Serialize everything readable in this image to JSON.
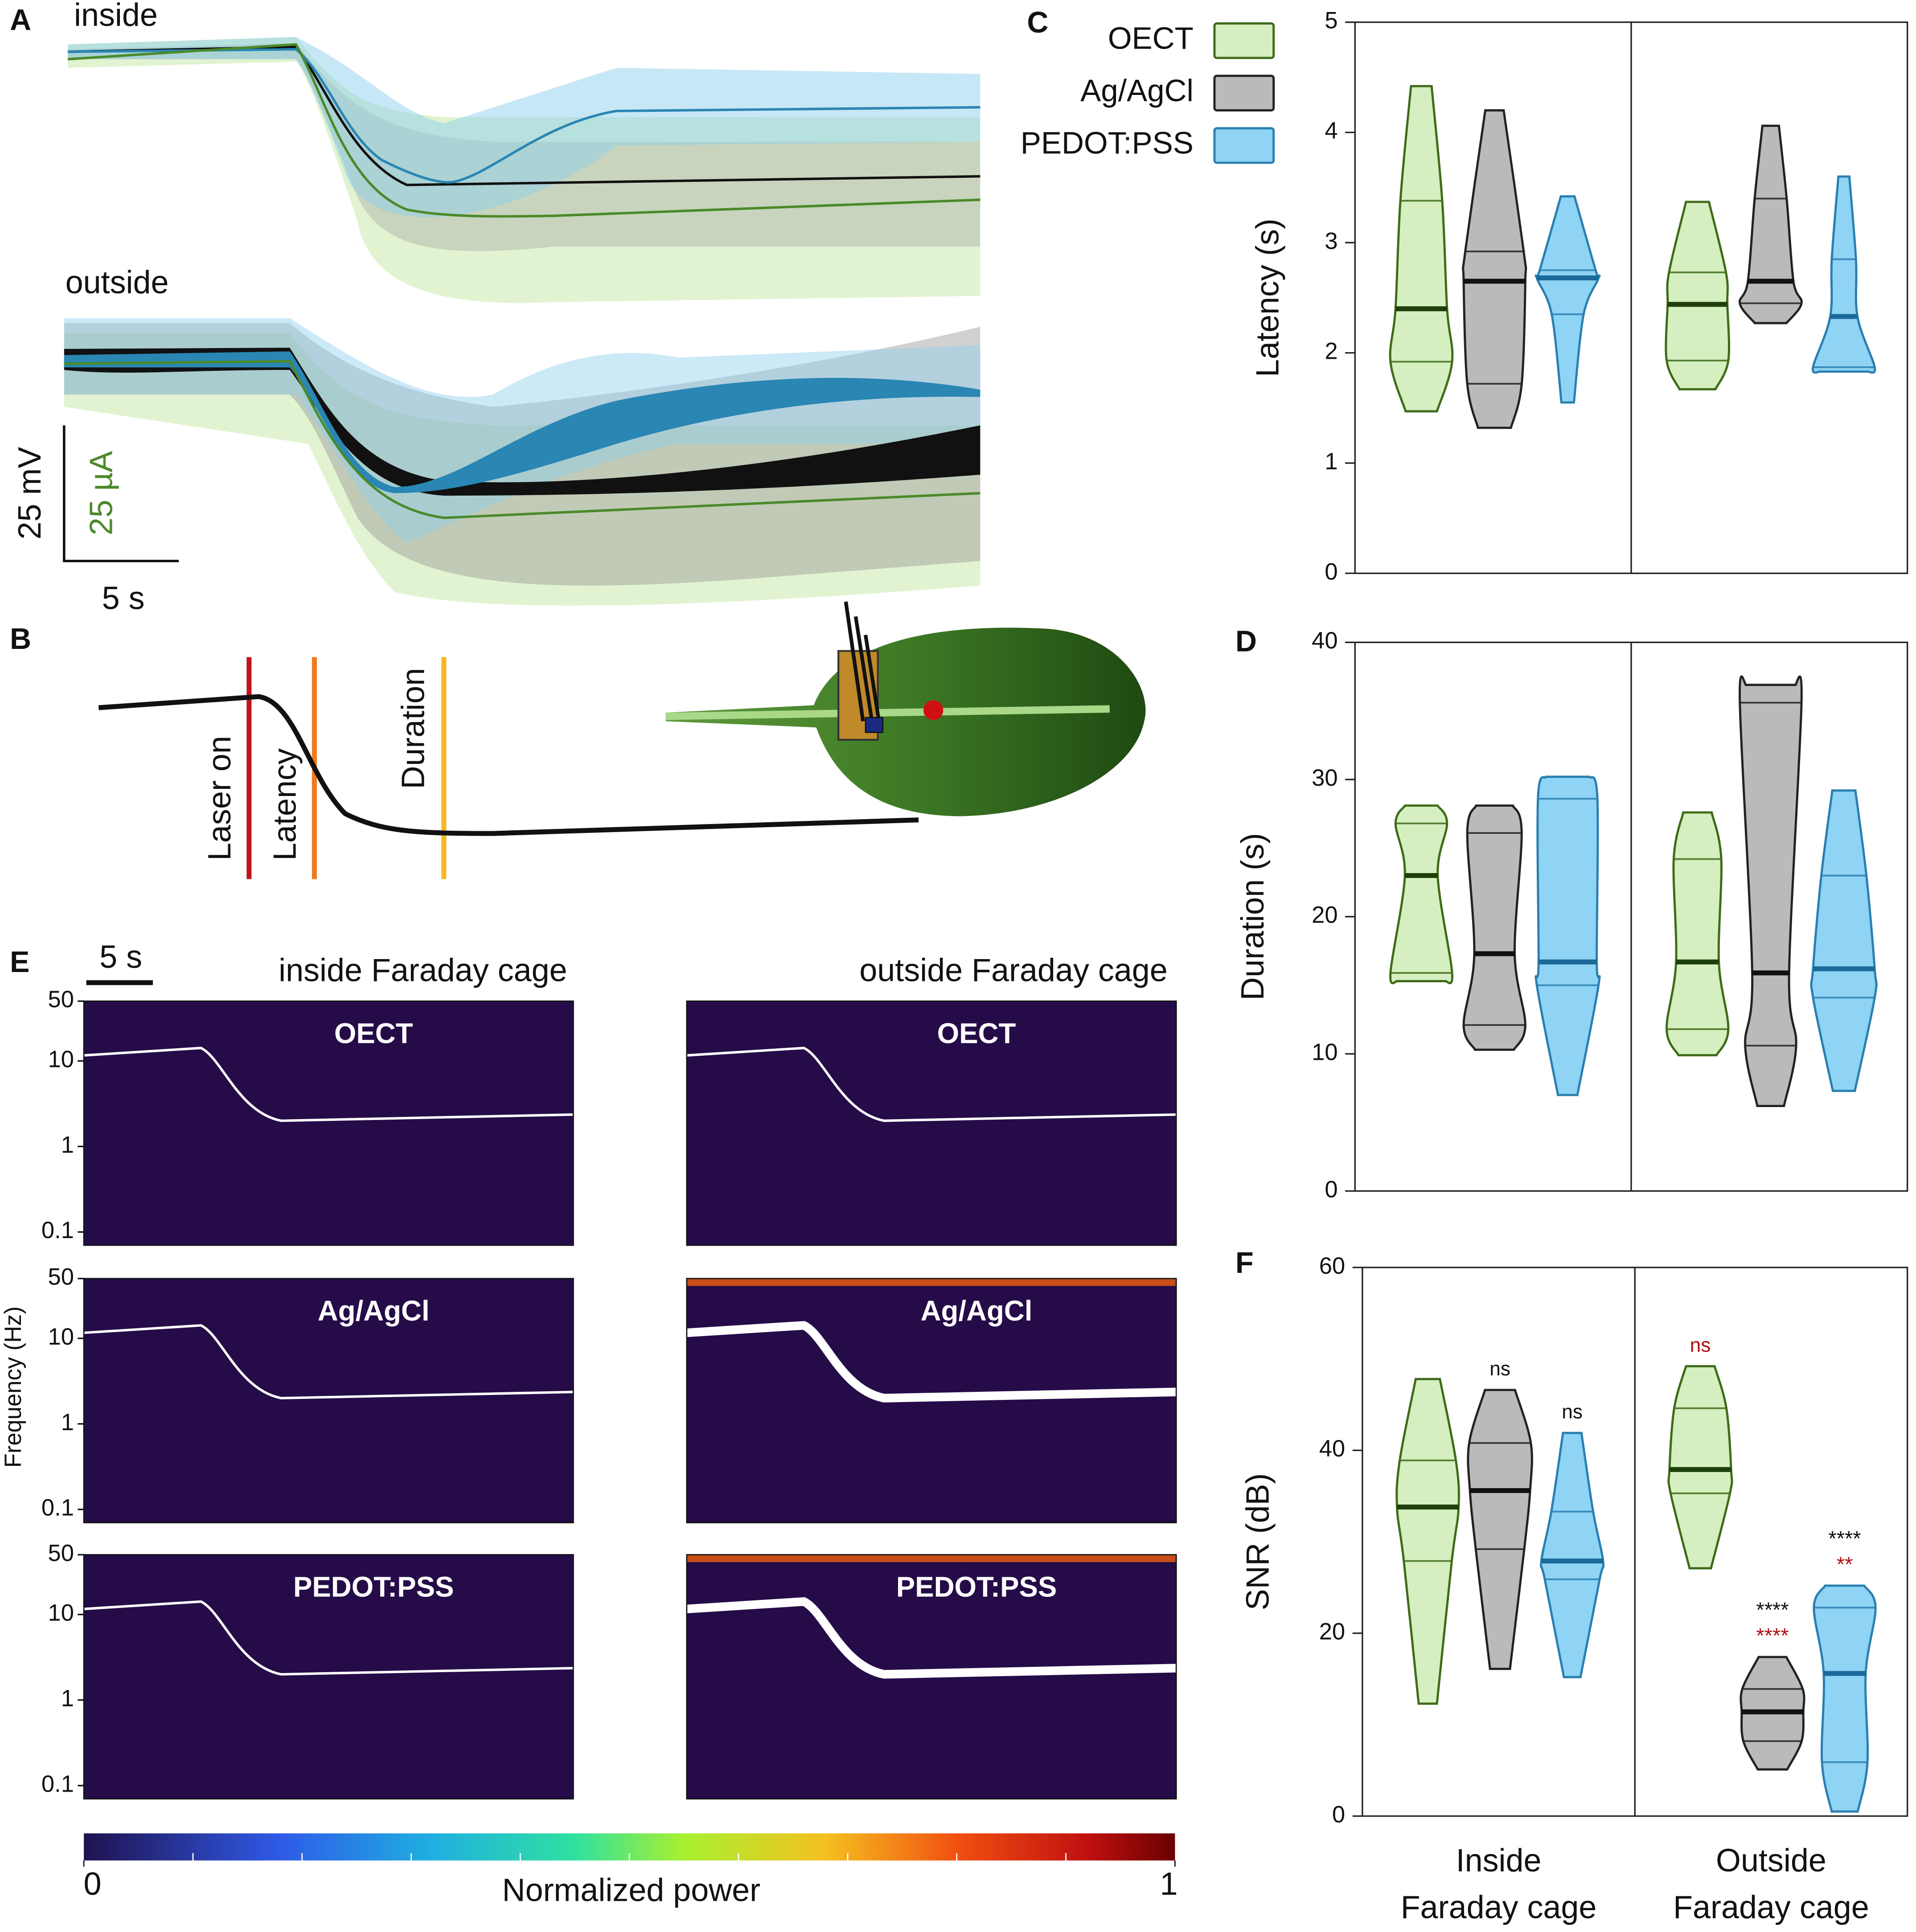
{
  "panel_a": {
    "label": "A",
    "inside": "inside",
    "outside": "outside",
    "scale_v": "25 mV",
    "scale_i": "25 µA",
    "scale_t": "5 s"
  },
  "panel_b": {
    "label": "B",
    "markers": [
      "Laser on",
      "Latency",
      "Duration"
    ]
  },
  "spectrogram": {
    "label": "E",
    "scale": "5 s",
    "columns": [
      "inside Faraday cage",
      "outside Faraday cage"
    ],
    "rows": [
      [
        "OECT",
        "OECT"
      ],
      [
        "Ag/AgCl",
        "Ag/AgCl"
      ],
      [
        "PEDOT:PSS",
        "PEDOT:PSS"
      ]
    ],
    "ylabel": "Frequency (Hz)",
    "yscale": "log",
    "ylim": [
      0.07,
      50
    ],
    "yticks": [
      50,
      10,
      1,
      0.1
    ],
    "colorbar": {
      "label": "Normalized power",
      "xlim": [
        0,
        1
      ],
      "xticks": [
        0,
        1
      ]
    }
  },
  "chart_data": [
    {
      "type": "violin",
      "label": "C",
      "ylabel": "Latency (s)",
      "ylim": [
        0,
        5
      ],
      "yticks": [
        0,
        1,
        2,
        3,
        4,
        5
      ],
      "legend": "top-left",
      "series": [
        {
          "name": "OECT",
          "color": "#d5efc0",
          "edge": "#3f6b1a",
          "values": [
            {
              "min": 1.47,
              "q1": 1.92,
              "median": 2.4,
              "q3": 3.38,
              "max": 4.42
            },
            {
              "min": 1.67,
              "q1": 1.93,
              "median": 2.44,
              "q3": 2.73,
              "max": 3.37
            }
          ]
        },
        {
          "name": "Ag/AgCl",
          "color": "#bababa",
          "edge": "#222222",
          "values": [
            {
              "min": 1.32,
              "q1": 1.72,
              "median": 2.65,
              "q3": 2.92,
              "max": 4.2
            },
            {
              "min": 2.27,
              "q1": 2.45,
              "median": 2.65,
              "q3": 3.4,
              "max": 4.06
            }
          ]
        },
        {
          "name": "PEDOT:PSS",
          "color": "#8fd3f5",
          "edge": "#2a7fb0",
          "values": [
            {
              "min": 1.55,
              "q1": 2.35,
              "median": 2.68,
              "q3": 2.75,
              "max": 3.42
            },
            {
              "min": 1.83,
              "q1": 1.87,
              "median": 2.33,
              "q3": 2.85,
              "max": 3.6
            }
          ]
        }
      ]
    },
    {
      "type": "violin",
      "label": "D",
      "ylabel": "Duration (s)",
      "ylim": [
        0,
        40
      ],
      "yticks": [
        0,
        10,
        20,
        30,
        40
      ],
      "series": [
        {
          "name": "OECT",
          "color": "#d5efc0",
          "edge": "#3f6b1a",
          "values": [
            {
              "min": 15.3,
              "q1": 15.9,
              "median": 23.0,
              "q3": 26.8,
              "max": 28.1
            },
            {
              "min": 9.9,
              "q1": 11.8,
              "median": 16.7,
              "q3": 24.2,
              "max": 27.6
            }
          ]
        },
        {
          "name": "Ag/AgCl",
          "color": "#bababa",
          "edge": "#222222",
          "values": [
            {
              "min": 10.3,
              "q1": 12.1,
              "median": 17.3,
              "q3": 26.1,
              "max": 28.1
            },
            {
              "min": 6.2,
              "q1": 10.6,
              "median": 15.9,
              "q3": 35.6,
              "max": 36.9
            }
          ]
        },
        {
          "name": "PEDOT:PSS",
          "color": "#8fd3f5",
          "edge": "#2a7fb0",
          "values": [
            {
              "min": 7.0,
              "q1": 15.0,
              "median": 16.7,
              "q3": 28.6,
              "max": 30.2
            },
            {
              "min": 7.3,
              "q1": 14.1,
              "median": 16.2,
              "q3": 23.0,
              "max": 29.2
            }
          ]
        }
      ]
    },
    {
      "type": "violin",
      "label": "F",
      "ylabel": "SNR (dB)",
      "ylim": [
        0,
        60
      ],
      "yticks": [
        0,
        20,
        40,
        60
      ],
      "categories": [
        [
          "Inside",
          "Faraday cage"
        ],
        [
          "Outside",
          "Faraday cage"
        ]
      ],
      "series": [
        {
          "name": "OECT",
          "color": "#d5efc0",
          "edge": "#3f6b1a",
          "values": [
            {
              "min": 12.3,
              "q1": 27.9,
              "median": 33.8,
              "q3": 38.9,
              "max": 47.8
            },
            {
              "min": 27.1,
              "q1": 35.3,
              "median": 37.9,
              "q3": 44.6,
              "max": 49.2,
              "annotations": [
                {
                  "text": "ns",
                  "color": "#b01010"
                }
              ]
            }
          ]
        },
        {
          "name": "Ag/AgCl",
          "color": "#bababa",
          "edge": "#222222",
          "values": [
            {
              "min": 16.1,
              "q1": 29.2,
              "median": 35.6,
              "q3": 40.8,
              "max": 46.6,
              "annotations": [
                {
                  "text": "ns",
                  "color": "#111111"
                }
              ]
            },
            {
              "min": 5.1,
              "q1": 8.2,
              "median": 11.4,
              "q3": 13.9,
              "max": 17.4,
              "annotations": [
                {
                  "text": "****",
                  "color": "#111111"
                },
                {
                  "text": "****",
                  "color": "#b01010"
                }
              ]
            }
          ]
        },
        {
          "name": "PEDOT:PSS",
          "color": "#8fd3f5",
          "edge": "#2a7fb0",
          "values": [
            {
              "min": 15.2,
              "q1": 25.9,
              "median": 27.9,
              "q3": 33.3,
              "max": 41.9,
              "annotations": [
                {
                  "text": "ns",
                  "color": "#111111"
                }
              ]
            },
            {
              "min": 0.5,
              "q1": 5.9,
              "median": 15.6,
              "q3": 22.8,
              "max": 25.2,
              "annotations": [
                {
                  "text": "****",
                  "color": "#111111"
                },
                {
                  "text": "**",
                  "color": "#b01010"
                }
              ]
            }
          ]
        }
      ]
    }
  ]
}
